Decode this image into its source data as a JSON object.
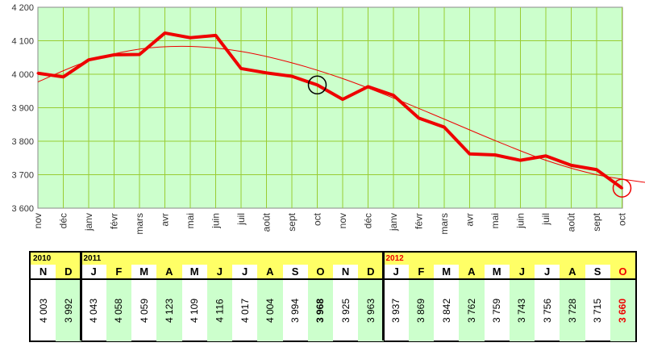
{
  "chart_data": {
    "type": "line",
    "ylim": [
      3600,
      4200
    ],
    "yticks": [
      "3 600",
      "3 700",
      "3 800",
      "3 900",
      "4 000",
      "4 100",
      "4 200"
    ],
    "ytick_values": [
      3600,
      3700,
      3800,
      3900,
      4000,
      4100,
      4200
    ],
    "categories": [
      "nov",
      "déc",
      "janv",
      "févr",
      "mars",
      "avr",
      "mai",
      "juin",
      "juil",
      "août",
      "sept",
      "oct",
      "nov",
      "déc",
      "janv",
      "févr",
      "mars",
      "avr",
      "mai",
      "juin",
      "juil",
      "août",
      "sept",
      "oct"
    ],
    "series": [
      {
        "values": [
          4003,
          3992,
          4043,
          4058,
          4059,
          4123,
          4109,
          4116,
          4017,
          4004,
          3994,
          3968,
          3925,
          3963,
          3937,
          3869,
          3842,
          3762,
          3759,
          3743,
          3756,
          3728,
          3715,
          3660
        ]
      }
    ],
    "trend": [
      3977,
      4040,
      4075,
      4083,
      4068,
      4034,
      3987,
      3929,
      3866,
      3802,
      3743,
      3700,
      3676
    ],
    "grid": true,
    "colors": {
      "plot_bg": "#ccffcc",
      "grid": "#99cc33",
      "line": "#ee0000"
    }
  },
  "table": {
    "years": [
      "2010",
      "2011",
      "2012"
    ],
    "months": [
      "N",
      "D",
      "J",
      "F",
      "M",
      "A",
      "M",
      "J",
      "J",
      "A",
      "S",
      "O",
      "N",
      "D",
      "J",
      "F",
      "M",
      "A",
      "M",
      "J",
      "J",
      "A",
      "S",
      "O"
    ],
    "values": [
      "4 003",
      "3 992",
      "4 043",
      "4 058",
      "4 059",
      "4 123",
      "4 109",
      "4 116",
      "4 017",
      "4 004",
      "3 994",
      "3 968",
      "3 925",
      "3 963",
      "3 937",
      "3 869",
      "3 842",
      "3 762",
      "3 759",
      "3 743",
      "3 756",
      "3 728",
      "3 715",
      "3 660"
    ]
  }
}
